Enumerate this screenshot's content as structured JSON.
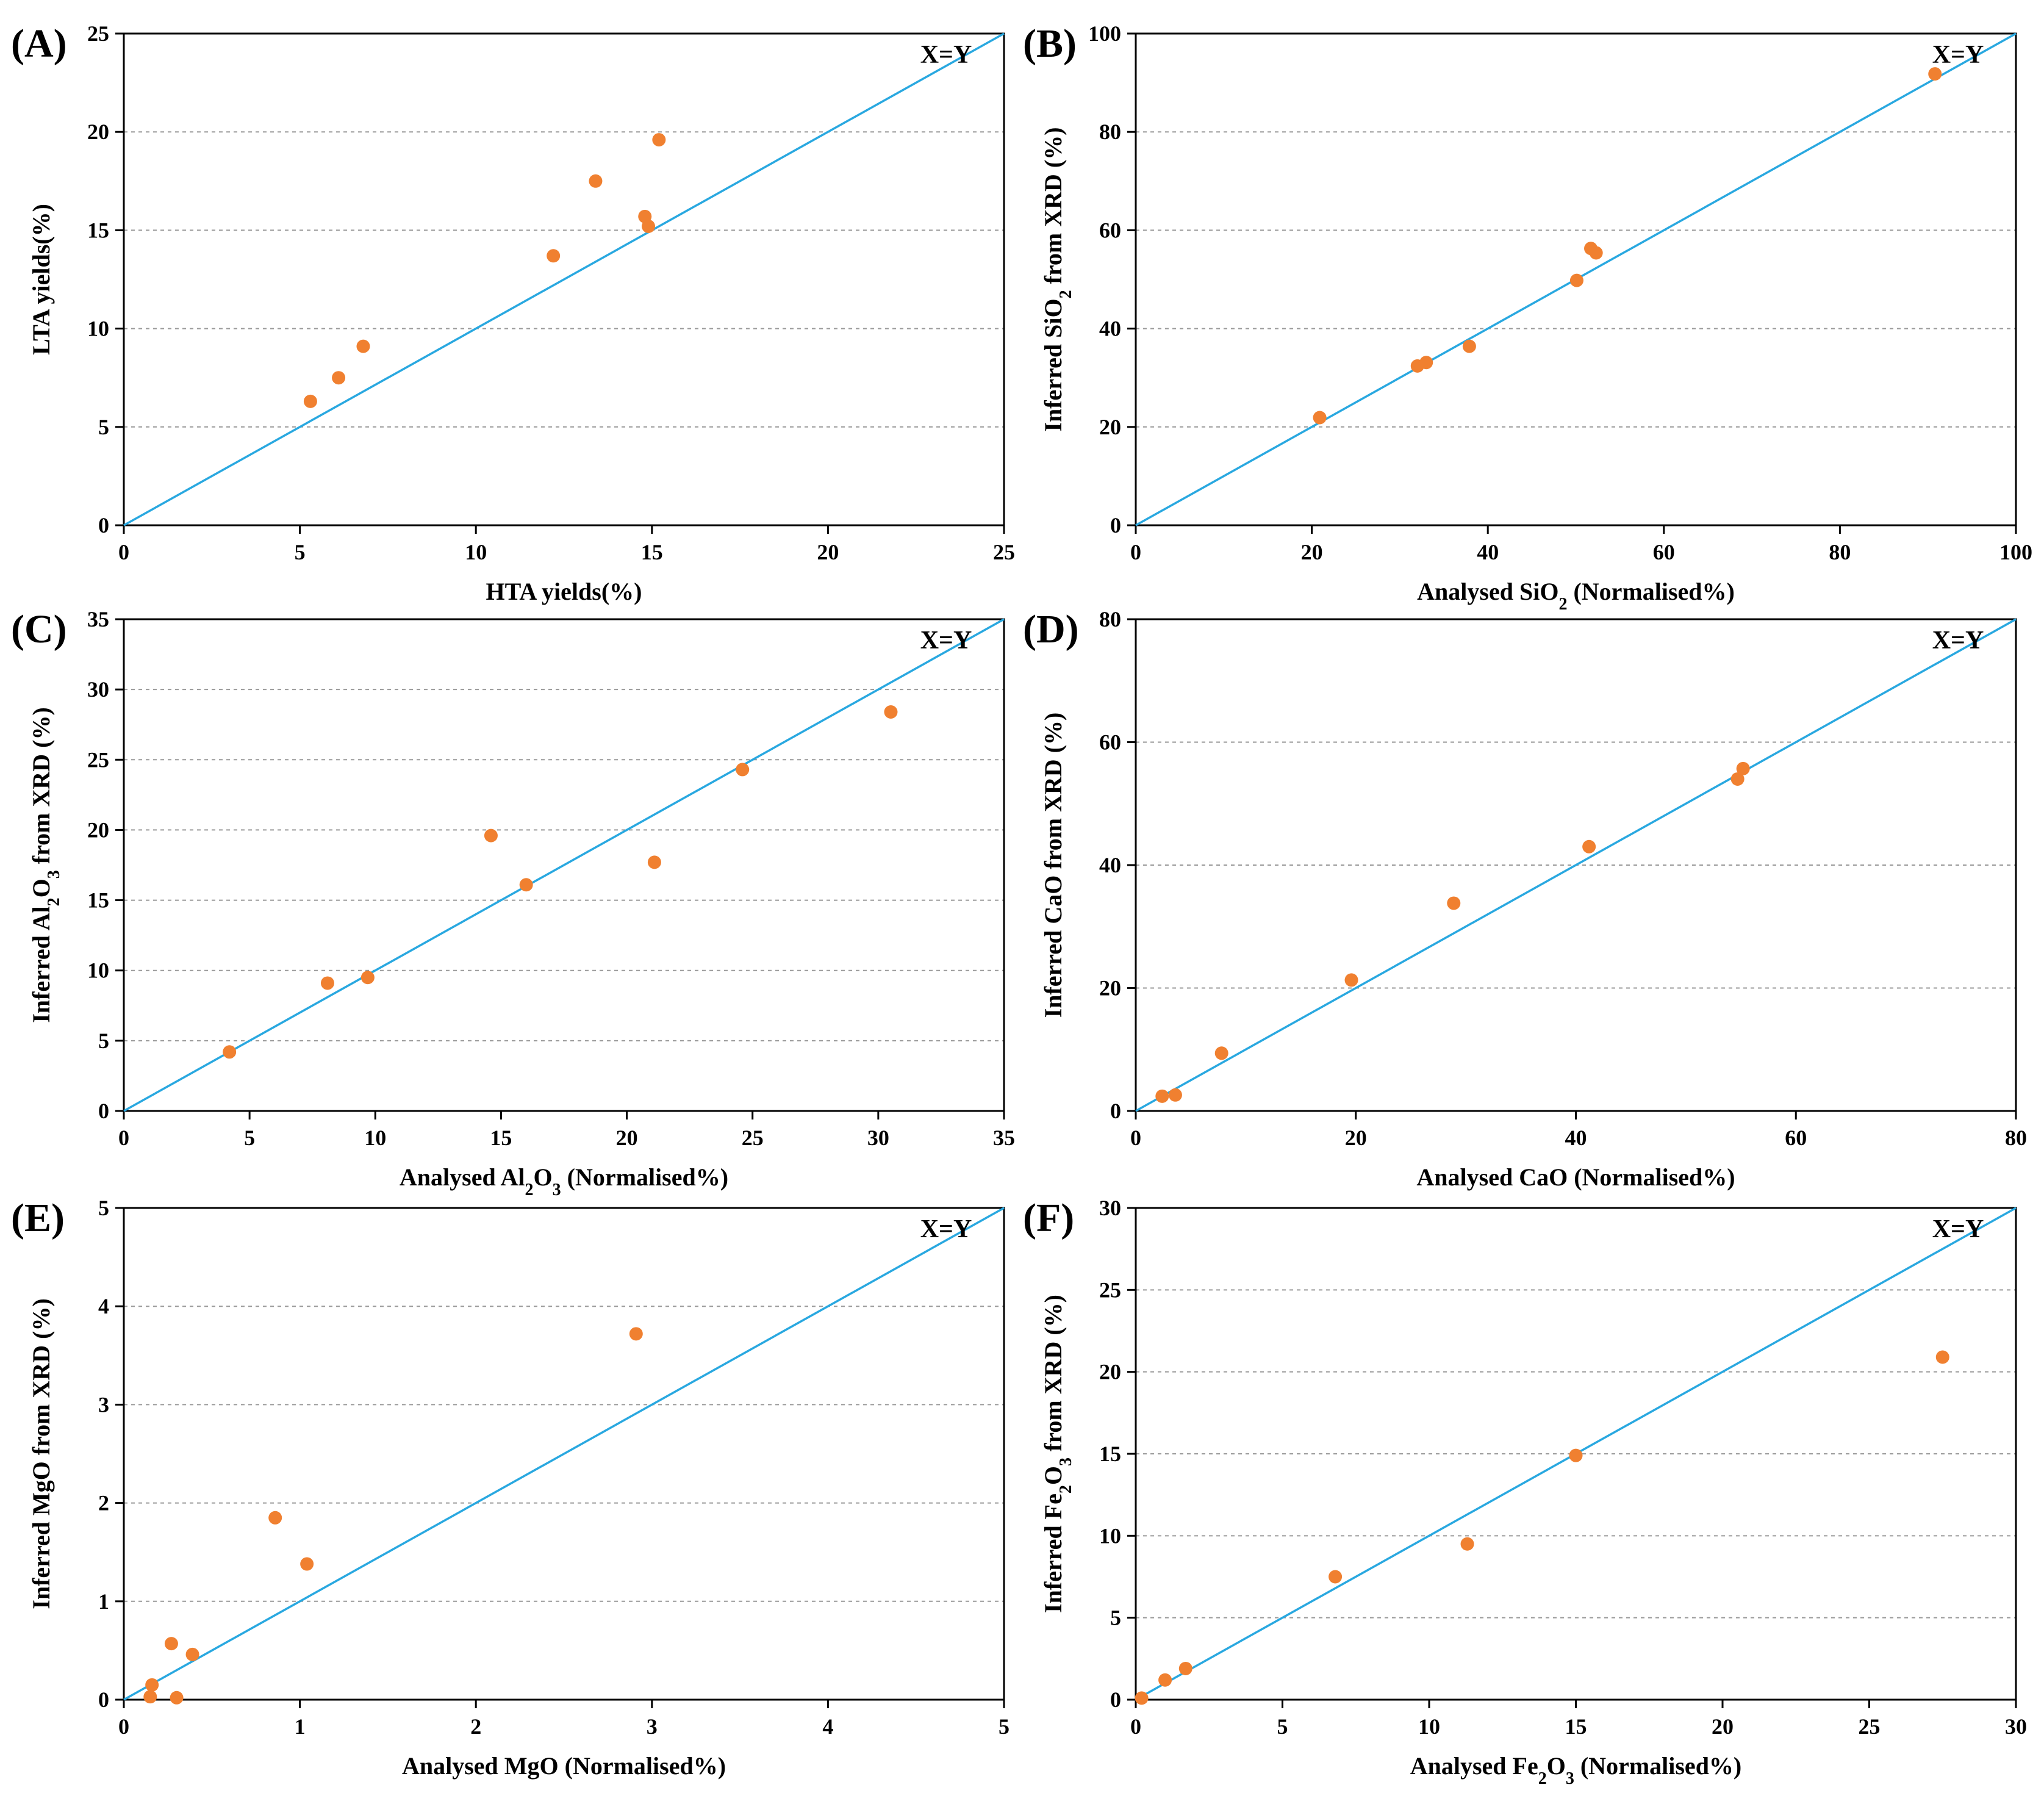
{
  "figure": {
    "style": {
      "point_color": "#f08030",
      "line_color": "#29a8e0"
    }
  },
  "chart_data": [
    {
      "type": "scatter",
      "panel_label": "(A)",
      "reference_line_label": "X=Y",
      "xlabel": "HTA yields(%)",
      "ylabel": "LTA yields(%)",
      "xlim": [
        0,
        25
      ],
      "ylim": [
        0,
        25
      ],
      "xticks": [
        "0",
        "5",
        "10",
        "15",
        "20",
        "25"
      ],
      "yticks": [
        "0",
        "5",
        "10",
        "15",
        "20",
        "25"
      ],
      "xtick_values": [
        0,
        5,
        10,
        15,
        20,
        25
      ],
      "ytick_values": [
        0,
        5,
        10,
        15,
        20,
        25
      ],
      "grid": "horizontal dashed",
      "points": [
        [
          5.3,
          6.3
        ],
        [
          6.1,
          7.5
        ],
        [
          6.8,
          9.1
        ],
        [
          12.2,
          13.7
        ],
        [
          13.4,
          17.5
        ],
        [
          14.8,
          15.7
        ],
        [
          14.9,
          15.2
        ],
        [
          15.2,
          19.6
        ]
      ]
    },
    {
      "type": "scatter",
      "panel_label": "(B)",
      "reference_line_label": "X=Y",
      "xlabel": "Analysed SiO₂ (Normalised%)",
      "ylabel": "Inferred SiO₂ from XRD (%)",
      "xlim": [
        0,
        100
      ],
      "ylim": [
        0,
        100
      ],
      "xticks": [
        "0",
        "20",
        "40",
        "60",
        "80",
        "100"
      ],
      "yticks": [
        "0",
        "20",
        "40",
        "60",
        "80",
        "100"
      ],
      "xtick_values": [
        0,
        20,
        40,
        60,
        80,
        100
      ],
      "ytick_values": [
        0,
        20,
        40,
        60,
        80,
        100
      ],
      "grid": "horizontal dashed",
      "points": [
        [
          20.9,
          21.9
        ],
        [
          32,
          32.4
        ],
        [
          33,
          33.1
        ],
        [
          37.9,
          36.4
        ],
        [
          50.1,
          49.8
        ],
        [
          51.7,
          56.3
        ],
        [
          52.3,
          55.4
        ],
        [
          90.8,
          91.8
        ]
      ]
    },
    {
      "type": "scatter",
      "panel_label": "(C)",
      "reference_line_label": "X=Y",
      "xlabel": "Analysed Al₂O₃ (Normalised%)",
      "ylabel": "Inferred Al₂O₃ from XRD (%)",
      "xlim": [
        0,
        35
      ],
      "ylim": [
        0,
        35
      ],
      "xticks": [
        "0",
        "5",
        "10",
        "15",
        "20",
        "25",
        "30",
        "35"
      ],
      "yticks": [
        "0",
        "5",
        "10",
        "15",
        "20",
        "25",
        "30",
        "35"
      ],
      "xtick_values": [
        0,
        5,
        10,
        15,
        20,
        25,
        30,
        35
      ],
      "ytick_values": [
        0,
        5,
        10,
        15,
        20,
        25,
        30,
        35
      ],
      "grid": "horizontal dashed",
      "points": [
        [
          4.2,
          4.2
        ],
        [
          8.1,
          9.1
        ],
        [
          9.7,
          9.5
        ],
        [
          14.6,
          19.6
        ],
        [
          16,
          16.1
        ],
        [
          21.1,
          17.7
        ],
        [
          24.6,
          24.3
        ],
        [
          30.5,
          28.4
        ]
      ]
    },
    {
      "type": "scatter",
      "panel_label": "(D)",
      "reference_line_label": "X=Y",
      "xlabel": "Analysed CaO (Normalised%)",
      "ylabel": "Inferred CaO from XRD (%)",
      "xlim": [
        0,
        80
      ],
      "ylim": [
        0,
        80
      ],
      "xticks": [
        "0",
        "20",
        "40",
        "60",
        "80"
      ],
      "yticks": [
        "0",
        "20",
        "40",
        "60",
        "80"
      ],
      "xtick_values": [
        0,
        20,
        40,
        60,
        80
      ],
      "ytick_values": [
        0,
        20,
        40,
        60,
        80
      ],
      "grid": "horizontal dashed",
      "points": [
        [
          2.4,
          2.4
        ],
        [
          3.6,
          2.6
        ],
        [
          7.8,
          9.4
        ],
        [
          19.6,
          21.3
        ],
        [
          28.9,
          33.8
        ],
        [
          41.2,
          43
        ],
        [
          54.7,
          54
        ],
        [
          55.2,
          55.7
        ]
      ]
    },
    {
      "type": "scatter",
      "panel_label": "(E)",
      "reference_line_label": "X=Y",
      "xlabel": "Analysed MgO (Normalised%)",
      "ylabel": "Inferred MgO from XRD (%)",
      "xlim": [
        0,
        5
      ],
      "ylim": [
        0,
        5
      ],
      "xticks": [
        "0",
        "1",
        "2",
        "3",
        "4",
        "5"
      ],
      "yticks": [
        "0",
        "1",
        "2",
        "3",
        "4",
        "5"
      ],
      "xtick_values": [
        0,
        1,
        2,
        3,
        4,
        5
      ],
      "ytick_values": [
        0,
        1,
        2,
        3,
        4,
        5
      ],
      "grid": "horizontal dashed",
      "points": [
        [
          0.15,
          0.03
        ],
        [
          0.16,
          0.15
        ],
        [
          0.27,
          0.57
        ],
        [
          0.3,
          0.02
        ],
        [
          0.39,
          0.46
        ],
        [
          0.86,
          1.85
        ],
        [
          1.04,
          1.38
        ],
        [
          2.91,
          3.72
        ]
      ]
    },
    {
      "type": "scatter",
      "panel_label": "(F)",
      "reference_line_label": "X=Y",
      "xlabel": "Analysed Fe₂O₃ (Normalised%)",
      "ylabel": "Inferred Fe₂O₃ from XRD (%)",
      "xlim": [
        0,
        30
      ],
      "ylim": [
        0,
        30
      ],
      "xticks": [
        "0",
        "5",
        "10",
        "15",
        "20",
        "25",
        "30"
      ],
      "yticks": [
        "0",
        "5",
        "10",
        "15",
        "20",
        "25",
        "30"
      ],
      "xtick_values": [
        0,
        5,
        10,
        15,
        20,
        25,
        30
      ],
      "ytick_values": [
        0,
        5,
        10,
        15,
        20,
        25,
        30
      ],
      "grid": "horizontal dashed",
      "points": [
        [
          0.2,
          0.1
        ],
        [
          1,
          1.2
        ],
        [
          1.7,
          1.9
        ],
        [
          6.8,
          7.5
        ],
        [
          11.3,
          9.5
        ],
        [
          15,
          14.9
        ],
        [
          27.5,
          20.9
        ]
      ]
    }
  ]
}
